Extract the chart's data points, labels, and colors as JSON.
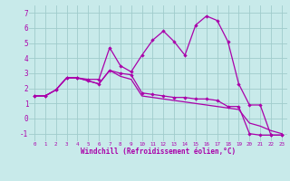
{
  "bg_color": "#c8eaea",
  "grid_color": "#a0cccc",
  "line_color": "#aa00aa",
  "x": [
    0,
    1,
    2,
    3,
    4,
    5,
    6,
    7,
    8,
    9,
    10,
    11,
    12,
    13,
    14,
    15,
    16,
    17,
    18,
    19,
    20,
    21,
    22,
    23
  ],
  "line1": [
    1.5,
    1.5,
    1.9,
    2.7,
    2.7,
    2.6,
    2.6,
    4.7,
    3.5,
    3.1,
    4.2,
    5.2,
    5.8,
    5.1,
    4.2,
    6.2,
    6.8,
    6.5,
    5.1,
    2.3,
    0.9,
    0.9,
    -1.1,
    -1.1
  ],
  "line2": [
    1.5,
    1.5,
    1.9,
    2.7,
    2.7,
    2.5,
    2.3,
    3.2,
    3.0,
    2.9,
    1.7,
    1.6,
    1.5,
    1.4,
    1.4,
    1.3,
    1.3,
    1.2,
    0.8,
    0.8,
    -1.0,
    -1.1,
    -1.1,
    -1.1
  ],
  "line3": [
    1.5,
    1.5,
    1.9,
    2.7,
    2.7,
    2.5,
    2.3,
    3.2,
    2.8,
    2.6,
    1.5,
    1.4,
    1.3,
    1.2,
    1.1,
    1.0,
    0.9,
    0.8,
    0.7,
    0.6,
    -0.3,
    -0.5,
    -0.8,
    -1.0
  ],
  "ylim": [
    -1.5,
    7.5
  ],
  "yticks": [
    -1,
    0,
    1,
    2,
    3,
    4,
    5,
    6,
    7
  ],
  "xlabel": "Windchill (Refroidissement éolien,°C)"
}
